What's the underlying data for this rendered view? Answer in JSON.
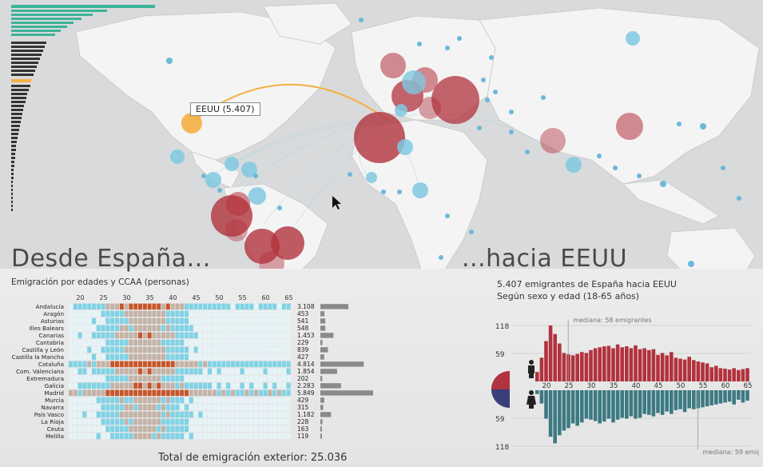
{
  "titles": {
    "left": "Desde España...",
    "right": "...hacia EEUU",
    "left_subtitle": "Emigración por edades y CCAA (personas)",
    "right_subtitle_1": "5.407 emigrantes de España hacia EEUU",
    "right_subtitle_2": "Según sexo y edad (18-65 años)"
  },
  "tooltip": "EEUU (5.407)",
  "total": {
    "label": "Total de emigración exterior:",
    "value": "25.036"
  },
  "colors": {
    "red": "#b2323d",
    "teal": "#3c7a82",
    "cyan": "#7fd3e6",
    "orange": "#f5b041",
    "green": "#3cb39a"
  },
  "chart_data": [
    {
      "type": "heatmap",
      "title": "Emigración por edades y CCAA (personas)",
      "x_ticks": [
        "20",
        "25",
        "30",
        "35",
        "40",
        "45",
        "50",
        "55",
        "60",
        "65"
      ],
      "categories": [
        "Andalucía",
        "Aragón",
        "Asturias",
        "Illes Balears",
        "Canarias",
        "Cantabria",
        "Castilla y León",
        "Castilla la Mancha",
        "Cataluña",
        "Com. Valenciana",
        "Extremadura",
        "Galicia",
        "Madrid",
        "Murcia",
        "Navarra",
        "País Vasco",
        "La Rioja",
        "Ceuta",
        "Melilla"
      ],
      "values": [
        3108,
        453,
        541,
        548,
        1453,
        229,
        839,
        427,
        4814,
        1854,
        202,
        2283,
        5849,
        429,
        315,
        1182,
        228,
        163,
        119
      ],
      "value_labels": [
        "3.108",
        "453",
        "541",
        "548",
        "1.453",
        "229",
        "839",
        "427",
        "4.814",
        "1.854",
        "202",
        "2.283",
        "5.849",
        "429",
        "315",
        "1.182",
        "228",
        "163",
        "119"
      ]
    },
    {
      "type": "bar",
      "title": "5.407 emigrantes de España hacia EEUU",
      "subtitle": "Según sexo y edad (18-65 años)",
      "x": [
        18,
        19,
        20,
        21,
        22,
        23,
        24,
        25,
        26,
        27,
        28,
        29,
        30,
        31,
        32,
        33,
        34,
        35,
        36,
        37,
        38,
        39,
        40,
        41,
        42,
        43,
        44,
        45,
        46,
        47,
        48,
        49,
        50,
        51,
        52,
        53,
        54,
        55,
        56,
        57,
        58,
        59,
        60,
        61,
        62,
        63,
        64,
        65
      ],
      "x_ticks": [
        "20",
        "25",
        "30",
        "35",
        "40",
        "45",
        "50",
        "55",
        "60",
        "65"
      ],
      "y_ticks": [
        "118",
        "59",
        "59",
        "118"
      ],
      "ylim": [
        0,
        118
      ],
      "series": [
        {
          "name": "hombres",
          "values": [
            20,
            50,
            85,
            118,
            100,
            80,
            60,
            57,
            55,
            58,
            62,
            60,
            66,
            70,
            72,
            74,
            75,
            70,
            78,
            72,
            74,
            70,
            76,
            68,
            70,
            66,
            68,
            56,
            60,
            55,
            62,
            50,
            48,
            46,
            52,
            45,
            42,
            40,
            38,
            30,
            33,
            28,
            27,
            25,
            28,
            24,
            26,
            28
          ]
        },
        {
          "name": "mujeres",
          "values": [
            8,
            28,
            60,
            98,
            112,
            95,
            85,
            80,
            70,
            75,
            68,
            60,
            62,
            65,
            70,
            66,
            60,
            68,
            62,
            58,
            60,
            55,
            60,
            58,
            50,
            52,
            55,
            48,
            52,
            45,
            50,
            42,
            40,
            46,
            38,
            40,
            38,
            36,
            34,
            32,
            30,
            28,
            26,
            24,
            30,
            20,
            26,
            22
          ]
        }
      ],
      "annotations": [
        "mediana:  58 emigrantes",
        "mediana:  59 emigrantes"
      ]
    }
  ]
}
